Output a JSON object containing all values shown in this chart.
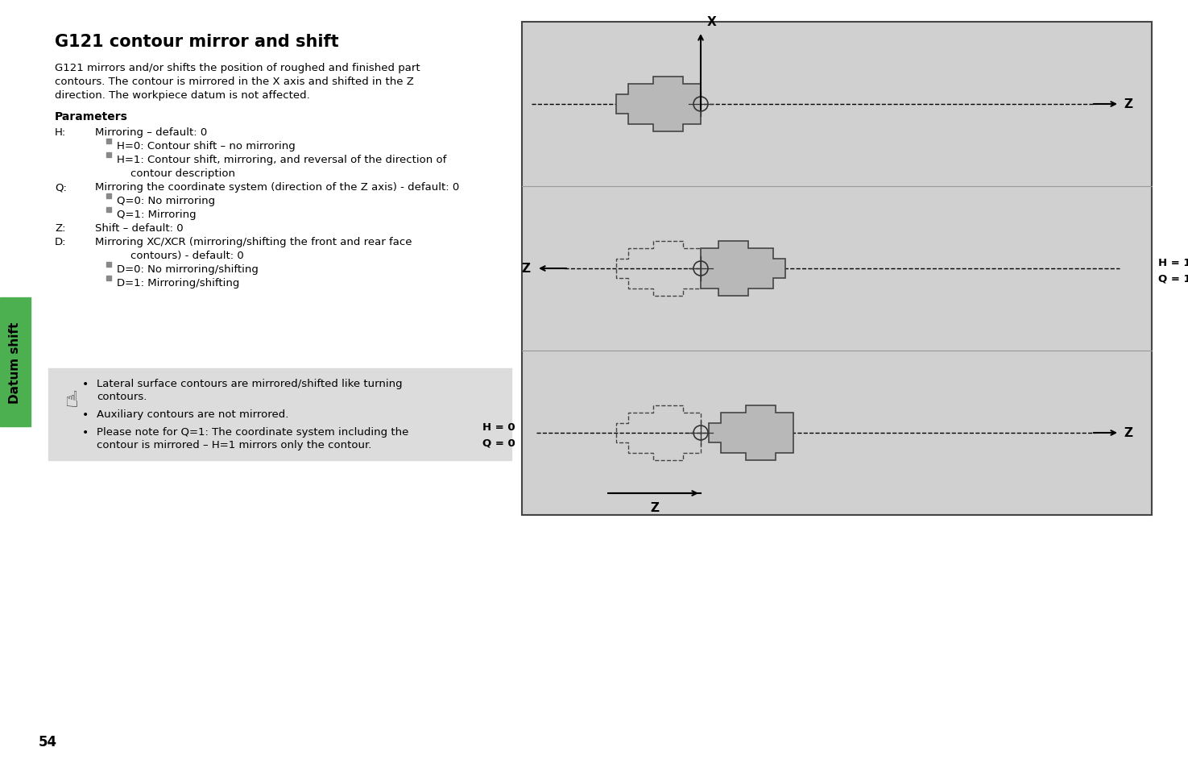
{
  "title": "G121 contour mirror and shift",
  "bg_color": "#ffffff",
  "page_number": "54",
  "sidebar_color": "#4caf50",
  "sidebar_text": "Datum shift",
  "body_text": [
    "G121 mirrors and/or shifts the position of roughed and finished part",
    "contours. The contour is mirrored in the X axis and shifted in the Z",
    "direction. The workpiece datum is not affected."
  ],
  "params_title": "Parameters",
  "params": [
    {
      "label": "H:",
      "text": "Mirroring – default: 0",
      "indent": 0
    },
    {
      "label": "",
      "text": "H=0: Contour shift – no mirroring",
      "indent": 1,
      "square": true
    },
    {
      "label": "",
      "text": "H=1: Contour shift, mirroring, and reversal of the direction of",
      "indent": 1,
      "square": true
    },
    {
      "label": "",
      "text": "contour description",
      "indent": 2
    },
    {
      "label": "Q:",
      "text": "Mirroring the coordinate system (direction of the Z axis) - default: 0",
      "indent": 0
    },
    {
      "label": "",
      "text": "Q=0: No mirroring",
      "indent": 1,
      "square": true
    },
    {
      "label": "",
      "text": "Q=1: Mirroring",
      "indent": 1,
      "square": true
    },
    {
      "label": "Z:",
      "text": "Shift – default: 0",
      "indent": 0
    },
    {
      "label": "D:",
      "text": "Mirroring XC/XCR (mirroring/shifting the front and rear face",
      "indent": 0
    },
    {
      "label": "",
      "text": "contours) - default: 0",
      "indent": 2
    },
    {
      "label": "",
      "text": "D=0: No mirroring/shifting",
      "indent": 1,
      "square": true
    },
    {
      "label": "",
      "text": "D=1: Mirroring/shifting",
      "indent": 1,
      "square": true
    }
  ],
  "note_bg": "#dcdcdc",
  "note_items": [
    "Lateral surface contours are mirrored/shifted like turning\ncontours.",
    "Auxiliary contours are not mirrored.",
    "Please note for Q=1: The coordinate system including the\ncontour is mirrored – H=1 mirrors only the contour."
  ],
  "diagram_bg": "#d0d0d0",
  "diagram_border": "#444444",
  "part_fill": "#b8b8b8",
  "part_fill_dark": "#a0a0a0",
  "part_edge": "#444444"
}
